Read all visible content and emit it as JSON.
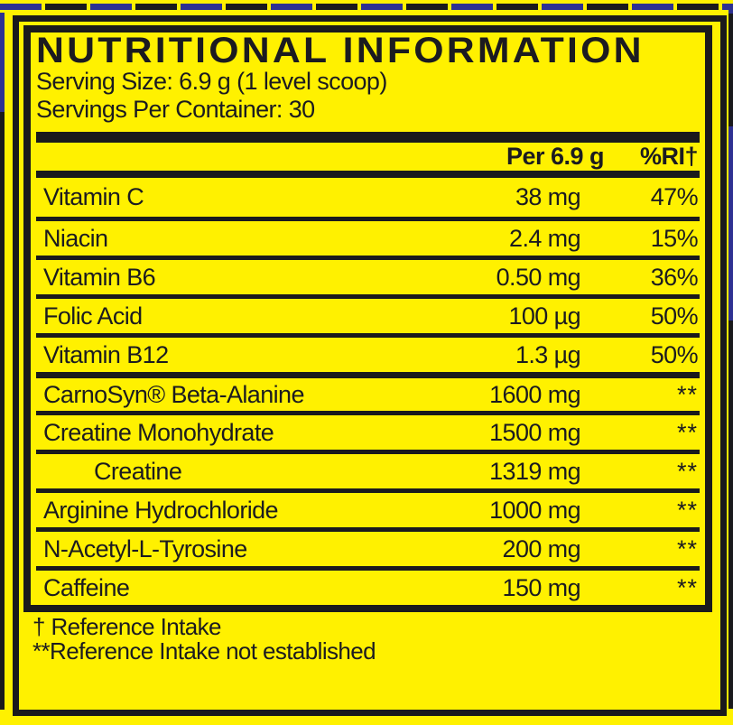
{
  "label": {
    "title": "NUTRITIONAL INFORMATION",
    "serving_size": "Serving Size: 6.9 g (1 level scoop)",
    "servings_per_container": "Servings Per Container: 30",
    "columns": {
      "amount": "Per 6.9 g",
      "ri": "%RI†"
    },
    "rows": [
      {
        "name": "Vitamin C",
        "amount": "38 mg",
        "ri": "47%",
        "indent": false
      },
      {
        "name": "Niacin",
        "amount": "2.4 mg",
        "ri": "15%",
        "indent": false
      },
      {
        "name": "Vitamin B6",
        "amount": "0.50 mg",
        "ri": "36%",
        "indent": false
      },
      {
        "name": "Folic Acid",
        "amount": "100 µg",
        "ri": "50%",
        "indent": false
      },
      {
        "name": "Vitamin B12",
        "amount": "1.3 µg",
        "ri": "50%",
        "indent": false
      },
      {
        "name": "CarnoSyn® Beta-Alanine",
        "amount": "1600 mg",
        "ri": "**",
        "indent": false
      },
      {
        "name": "Creatine Monohydrate",
        "amount": "1500 mg",
        "ri": "**",
        "indent": false
      },
      {
        "name": "Creatine",
        "amount": "1319 mg",
        "ri": "**",
        "indent": true
      },
      {
        "name": "Arginine Hydrochloride",
        "amount": "1000 mg",
        "ri": "**",
        "indent": false
      },
      {
        "name": "N-Acetyl-L-Tyrosine",
        "amount": "200 mg",
        "ri": "**",
        "indent": false
      },
      {
        "name": "Caffeine",
        "amount": "150 mg",
        "ri": "**",
        "indent": false
      }
    ],
    "footnotes": [
      "† Reference Intake",
      "**Reference Intake not established"
    ],
    "colors": {
      "background": "#FFF100",
      "ink": "#1B1B20",
      "dash_blue": "#2E3192"
    }
  }
}
